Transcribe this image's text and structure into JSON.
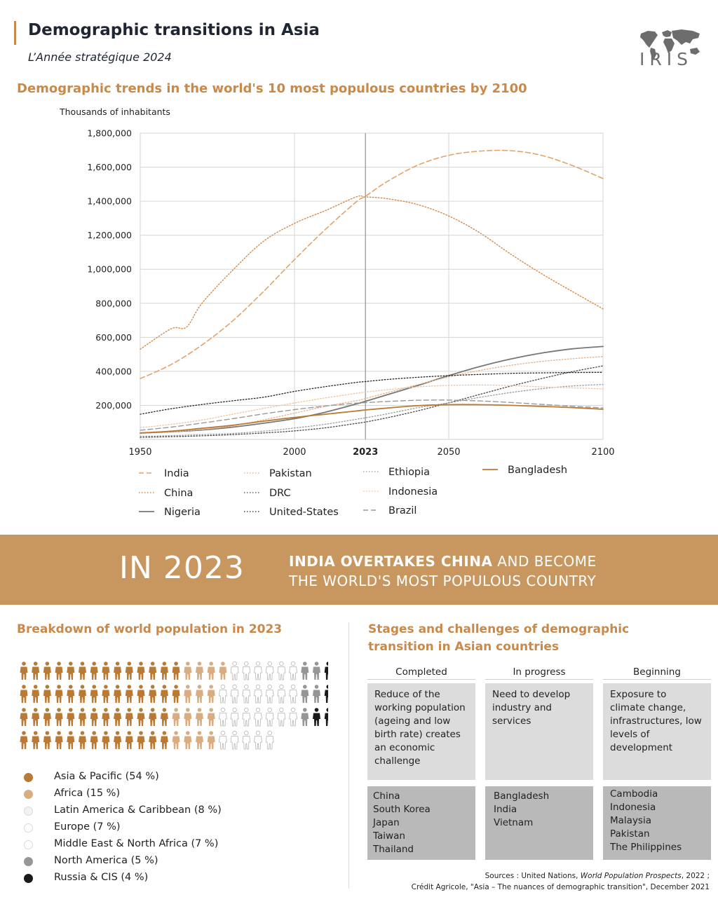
{
  "header": {
    "title": "Demographic transitions in Asia",
    "subtitle": "L’Année stratégique 2024",
    "logo_text": "IRIS"
  },
  "section_chart": {
    "title": "Demographic trends in the world's 10 most populous countries by 2100"
  },
  "colors": {
    "accent": "#c8894a",
    "banner": "#c8975f",
    "asia": "#b97a35",
    "africa": "#d9ad82",
    "north_america": "#969696",
    "russia": "#1a1a1a"
  },
  "chart_data": {
    "type": "line",
    "title": "Demographic trends in the world's 10 most populous countries by 2100",
    "ylabel": "Thousands of inhabitants",
    "xlim": [
      1950,
      2100
    ],
    "ylim": [
      0,
      1800000
    ],
    "x_ticks": [
      1950,
      2000,
      2023,
      2050,
      2100
    ],
    "x_tick_labels": [
      "1950",
      "2000",
      "2023",
      "2050",
      "2100"
    ],
    "highlight_x": 2023,
    "y_ticks": [
      200000,
      400000,
      600000,
      800000,
      1000000,
      1200000,
      1400000,
      1600000,
      1800000
    ],
    "y_tick_labels": [
      "200,000",
      "400,000",
      "600,000",
      "800,000",
      "1,000,000",
      "1,200,000",
      "1,400,000",
      "1,600,000",
      "1,800,000"
    ],
    "grid": true,
    "legend_position": "bottom",
    "series": [
      {
        "name": "India",
        "color": "#e0a46a",
        "style": "dashed",
        "width": 1.6,
        "x": [
          1950,
          1960,
          1970,
          1980,
          1990,
          2000,
          2010,
          2020,
          2023,
          2030,
          2040,
          2050,
          2060,
          2070,
          2080,
          2090,
          2100
        ],
        "y": [
          357000,
          440000,
          555000,
          697000,
          870000,
          1057000,
          1234000,
          1396000,
          1429000,
          1515000,
          1612000,
          1670000,
          1694000,
          1697000,
          1670000,
          1610000,
          1533000
        ]
      },
      {
        "name": "China",
        "color": "#d08a4c",
        "style": "dotted",
        "width": 1.4,
        "x": [
          1950,
          1960,
          1965,
          1970,
          1980,
          1990,
          2000,
          2010,
          2020,
          2023,
          2030,
          2040,
          2050,
          2060,
          2070,
          2080,
          2090,
          2100
        ],
        "y": [
          530000,
          650000,
          660000,
          800000,
          995000,
          1165000,
          1270000,
          1345000,
          1425000,
          1425000,
          1415000,
          1380000,
          1313000,
          1215000,
          1090000,
          975000,
          870000,
          767000
        ]
      },
      {
        "name": "Nigeria",
        "color": "#777777",
        "style": "solid",
        "width": 1.8,
        "x": [
          1950,
          1960,
          1970,
          1980,
          1990,
          2000,
          2010,
          2020,
          2023,
          2030,
          2040,
          2050,
          2060,
          2070,
          2080,
          2090,
          2100
        ],
        "y": [
          37000,
          45000,
          55000,
          72000,
          95000,
          122000,
          160000,
          208000,
          224000,
          262000,
          317000,
          375000,
          428000,
          472000,
          507000,
          532000,
          546000
        ]
      },
      {
        "name": "Pakistan",
        "color": "#e6b58e",
        "style": "dotted",
        "width": 1.4,
        "x": [
          1950,
          1960,
          1970,
          1980,
          1990,
          2000,
          2010,
          2020,
          2023,
          2030,
          2040,
          2050,
          2060,
          2070,
          2080,
          2090,
          2100
        ],
        "y": [
          37000,
          45000,
          58000,
          80000,
          115000,
          154000,
          194000,
          227000,
          240000,
          274000,
          322000,
          367000,
          405000,
          435000,
          458000,
          474000,
          487000
        ]
      },
      {
        "name": "DRC",
        "color": "#444444",
        "style": "dotted",
        "width": 1.3,
        "x": [
          1950,
          1960,
          1970,
          1980,
          1990,
          2000,
          2010,
          2020,
          2023,
          2030,
          2040,
          2050,
          2060,
          2070,
          2080,
          2090,
          2100
        ],
        "y": [
          12000,
          16000,
          21000,
          28000,
          38000,
          50000,
          68000,
          94000,
          102000,
          127000,
          168000,
          215000,
          264000,
          313000,
          357000,
          398000,
          432000
        ]
      },
      {
        "name": "United-States",
        "color": "#222222",
        "style": "dotted",
        "width": 1.3,
        "x": [
          1950,
          1960,
          1970,
          1980,
          1990,
          2000,
          2010,
          2020,
          2023,
          2030,
          2040,
          2050,
          2060,
          2070,
          2080,
          2090,
          2100
        ],
        "y": [
          148000,
          180000,
          205000,
          227000,
          248000,
          282000,
          310000,
          335000,
          340000,
          352000,
          365000,
          375000,
          382000,
          388000,
          391000,
          393000,
          394000
        ]
      },
      {
        "name": "Ethiopia",
        "color": "#9a9a9a",
        "style": "dotted",
        "width": 1.3,
        "x": [
          1950,
          1960,
          1970,
          1980,
          1990,
          2000,
          2010,
          2020,
          2023,
          2030,
          2040,
          2050,
          2060,
          2070,
          2080,
          2090,
          2100
        ],
        "y": [
          18000,
          22000,
          28000,
          35000,
          48000,
          67000,
          89000,
          118000,
          127000,
          150000,
          186000,
          215000,
          247000,
          275000,
          298000,
          314000,
          323000
        ]
      },
      {
        "name": "Indonesia",
        "color": "#edc7a2",
        "style": "dotted",
        "width": 1.4,
        "x": [
          1950,
          1960,
          1970,
          1980,
          1990,
          2000,
          2010,
          2020,
          2023,
          2030,
          2040,
          2050,
          2060,
          2070,
          2080,
          2090,
          2100
        ],
        "y": [
          69000,
          88000,
          114000,
          148000,
          182000,
          214000,
          244000,
          271000,
          278000,
          292000,
          309000,
          317000,
          320000,
          316000,
          309000,
          303000,
          297000
        ]
      },
      {
        "name": "Brazil",
        "color": "#9a9a9a",
        "style": "dashed",
        "width": 1.4,
        "x": [
          1950,
          1960,
          1970,
          1980,
          1990,
          2000,
          2010,
          2020,
          2023,
          2030,
          2040,
          2050,
          2060,
          2070,
          2080,
          2090,
          2100
        ],
        "y": [
          54000,
          72000,
          96000,
          122000,
          150000,
          175000,
          196000,
          213000,
          216000,
          223000,
          230000,
          231000,
          226000,
          217000,
          206000,
          195000,
          185000
        ]
      },
      {
        "name": "Bangladesh",
        "color": "#b97a35",
        "style": "solid",
        "width": 1.8,
        "x": [
          1950,
          1960,
          1970,
          1980,
          1990,
          2000,
          2010,
          2020,
          2023,
          2030,
          2040,
          2050,
          2060,
          2070,
          2080,
          2090,
          2100
        ],
        "y": [
          38000,
          48000,
          65000,
          83000,
          107000,
          129000,
          148000,
          167000,
          173000,
          184000,
          198000,
          204000,
          204000,
          200000,
          194000,
          187000,
          177000
        ]
      }
    ]
  },
  "banner": {
    "year_text": "IN 2023",
    "line1_bold": "INDIA OVERTAKES CHINA",
    "line1_rest": " AND BECOME",
    "line2": "THE WORLD'S MOST POPULOUS COUNTRY"
  },
  "breakdown": {
    "title": "Breakdown of world population in 2023",
    "legend": [
      {
        "label": "Asia & Pacific (54 %)",
        "color": "#b97a35",
        "outline": false
      },
      {
        "label": "Africa (15 %)",
        "color": "#d9ad82",
        "outline": false
      },
      {
        "label": "Latin America & Caribbean (8 %)",
        "color": "#f2f2f2",
        "outline": true
      },
      {
        "label": "Europe (7 %)",
        "color": "#ffffff",
        "outline": true
      },
      {
        "label": "Middle East & North Africa (7 %)",
        "color": "#ffffff",
        "outline": true
      },
      {
        "label": "North America (5 %)",
        "color": "#969696",
        "outline": false
      },
      {
        "label": "Russia & CIS (4 %)",
        "color": "#1a1a1a",
        "outline": false
      }
    ]
  },
  "stages": {
    "title": "Stages and challenges of demographic transition in Asian countries",
    "columns": [
      {
        "heading": "Completed",
        "description": "Reduce of the working population (ageing and low birth rate) creates an economic challenge",
        "countries": [
          "China",
          "South Korea",
          "Japan",
          "Taiwan",
          "Thailand"
        ]
      },
      {
        "heading": "In progress",
        "description": "Need to develop industry and services",
        "countries": [
          "Bangladesh",
          "India",
          "Vietnam"
        ]
      },
      {
        "heading": "Beginning",
        "description": "Exposure to climate change, infrastructures, low levels of development",
        "countries": [
          "Cambodia",
          "Indonesia",
          "Malaysia",
          "Pakistan",
          "The Philippines"
        ]
      }
    ]
  },
  "sources": {
    "line1_prefix": "Sources : United Nations, ",
    "line1_italic": "World Population Prospects",
    "line1_suffix": ", 2022 ;",
    "line2": "Crédit Agricole, \"Asia – The nuances of demographic transition\", December 2021"
  }
}
